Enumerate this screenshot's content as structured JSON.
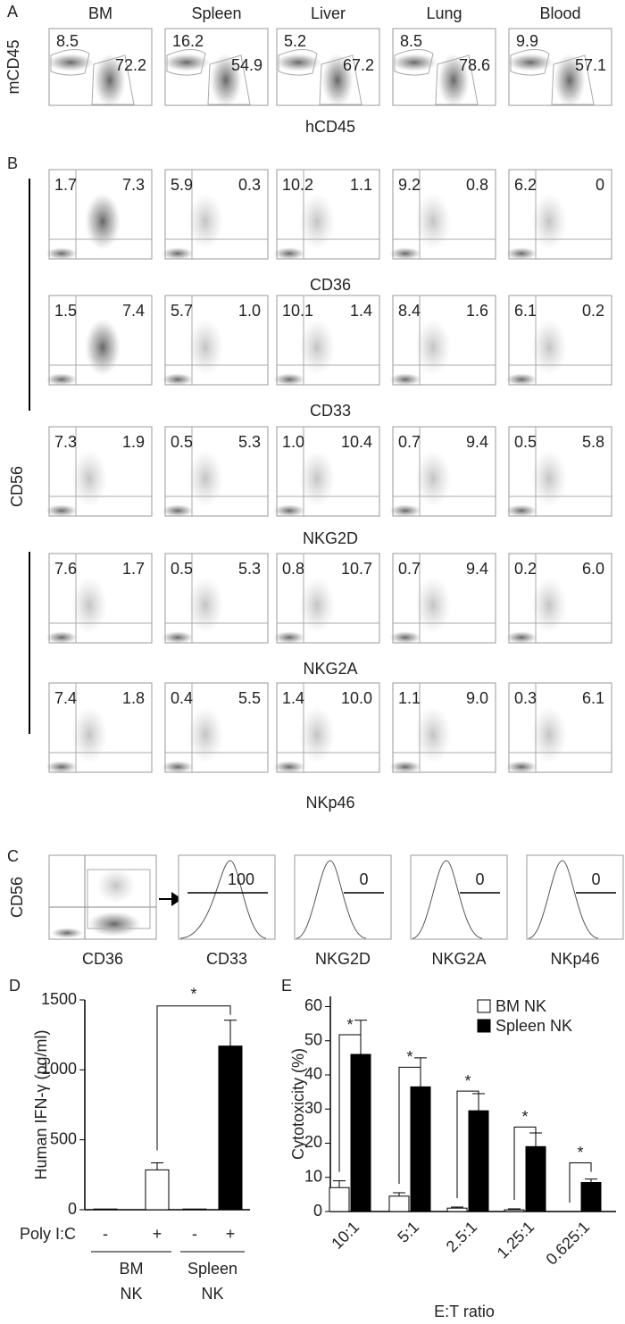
{
  "panel_a": {
    "label": "A",
    "y_label": "mCD45",
    "x_label": "hCD45",
    "columns": [
      "BM",
      "Spleen",
      "Liver",
      "Lung",
      "Blood"
    ],
    "gates": [
      [
        "8.5",
        "72.2"
      ],
      [
        "16.2",
        "54.9"
      ],
      [
        "5.2",
        "67.2"
      ],
      [
        "8.5",
        "78.6"
      ],
      [
        "9.9",
        "57.1"
      ]
    ]
  },
  "panel_b": {
    "label": "B",
    "y_label": "CD56",
    "rows": [
      {
        "marker": "CD36",
        "gates": [
          [
            "1.7",
            "7.3"
          ],
          [
            "5.9",
            "0.3"
          ],
          [
            "10.2",
            "1.1"
          ],
          [
            "9.2",
            "0.8"
          ],
          [
            "6.2",
            "0"
          ]
        ]
      },
      {
        "marker": "CD33",
        "gates": [
          [
            "1.5",
            "7.4"
          ],
          [
            "5.7",
            "1.0"
          ],
          [
            "10.1",
            "1.4"
          ],
          [
            "8.4",
            "1.6"
          ],
          [
            "6.1",
            "0.2"
          ]
        ]
      },
      {
        "marker": "NKG2D",
        "gates": [
          [
            "7.3",
            "1.9"
          ],
          [
            "0.5",
            "5.3"
          ],
          [
            "1.0",
            "10.4"
          ],
          [
            "0.7",
            "9.4"
          ],
          [
            "0.5",
            "5.8"
          ]
        ]
      },
      {
        "marker": "NKG2A",
        "gates": [
          [
            "7.6",
            "1.7"
          ],
          [
            "0.5",
            "5.3"
          ],
          [
            "0.8",
            "10.7"
          ],
          [
            "0.7",
            "9.4"
          ],
          [
            "0.2",
            "6.0"
          ]
        ]
      },
      {
        "marker": "NKp46",
        "gates": [
          [
            "7.4",
            "1.8"
          ],
          [
            "0.4",
            "5.5"
          ],
          [
            "1.4",
            "10.0"
          ],
          [
            "1.1",
            "9.0"
          ],
          [
            "0.3",
            "6.1"
          ]
        ]
      }
    ]
  },
  "panel_c": {
    "label": "C",
    "y_label": "CD56",
    "x_label": "CD36",
    "histograms": [
      {
        "marker": "CD33",
        "value": "100"
      },
      {
        "marker": "NKG2D",
        "value": "0"
      },
      {
        "marker": "NKG2A",
        "value": "0"
      },
      {
        "marker": "NKp46",
        "value": "0"
      }
    ]
  },
  "chart_data": [
    {
      "type": "bar",
      "label": "D",
      "y_label": "Human IFN-γ (pg/ml)",
      "row_label": "Poly I:C",
      "categories": [
        "-",
        "+",
        "-",
        "+"
      ],
      "groups": [
        [
          "BM",
          "NK"
        ],
        [
          "Spleen",
          "NK"
        ]
      ],
      "values": [
        5,
        285,
        5,
        1170
      ],
      "errors": [
        0,
        50,
        0,
        185
      ],
      "colors": [
        "#ffffff",
        "#ffffff",
        "#000000",
        "#000000"
      ],
      "ylim": [
        0,
        1500
      ],
      "yticks": [
        0,
        500,
        1000,
        1500
      ],
      "annotation": "*"
    },
    {
      "type": "bar",
      "label": "E",
      "y_label": "Cytotoxicity (%)",
      "x_label": "E:T ratio",
      "categories": [
        "10:1",
        "5:1",
        "2.5:1",
        "1.25:1",
        "0.625:1"
      ],
      "series": [
        {
          "name": "BM NK",
          "color": "#ffffff",
          "values": [
            7,
            4.5,
            1,
            0.5,
            0
          ],
          "errors": [
            2,
            1,
            0.3,
            0.3,
            0
          ]
        },
        {
          "name": "Spleen NK",
          "color": "#000000",
          "values": [
            46,
            36.5,
            29.5,
            19,
            8.5
          ],
          "errors": [
            10,
            8.5,
            5,
            4,
            1
          ]
        }
      ],
      "annotations": [
        "*",
        "*",
        "*",
        "*",
        "*"
      ],
      "ylim": [
        0,
        63
      ],
      "yticks": [
        0,
        10,
        20,
        30,
        40,
        50,
        60
      ],
      "legend": "top-right"
    }
  ]
}
